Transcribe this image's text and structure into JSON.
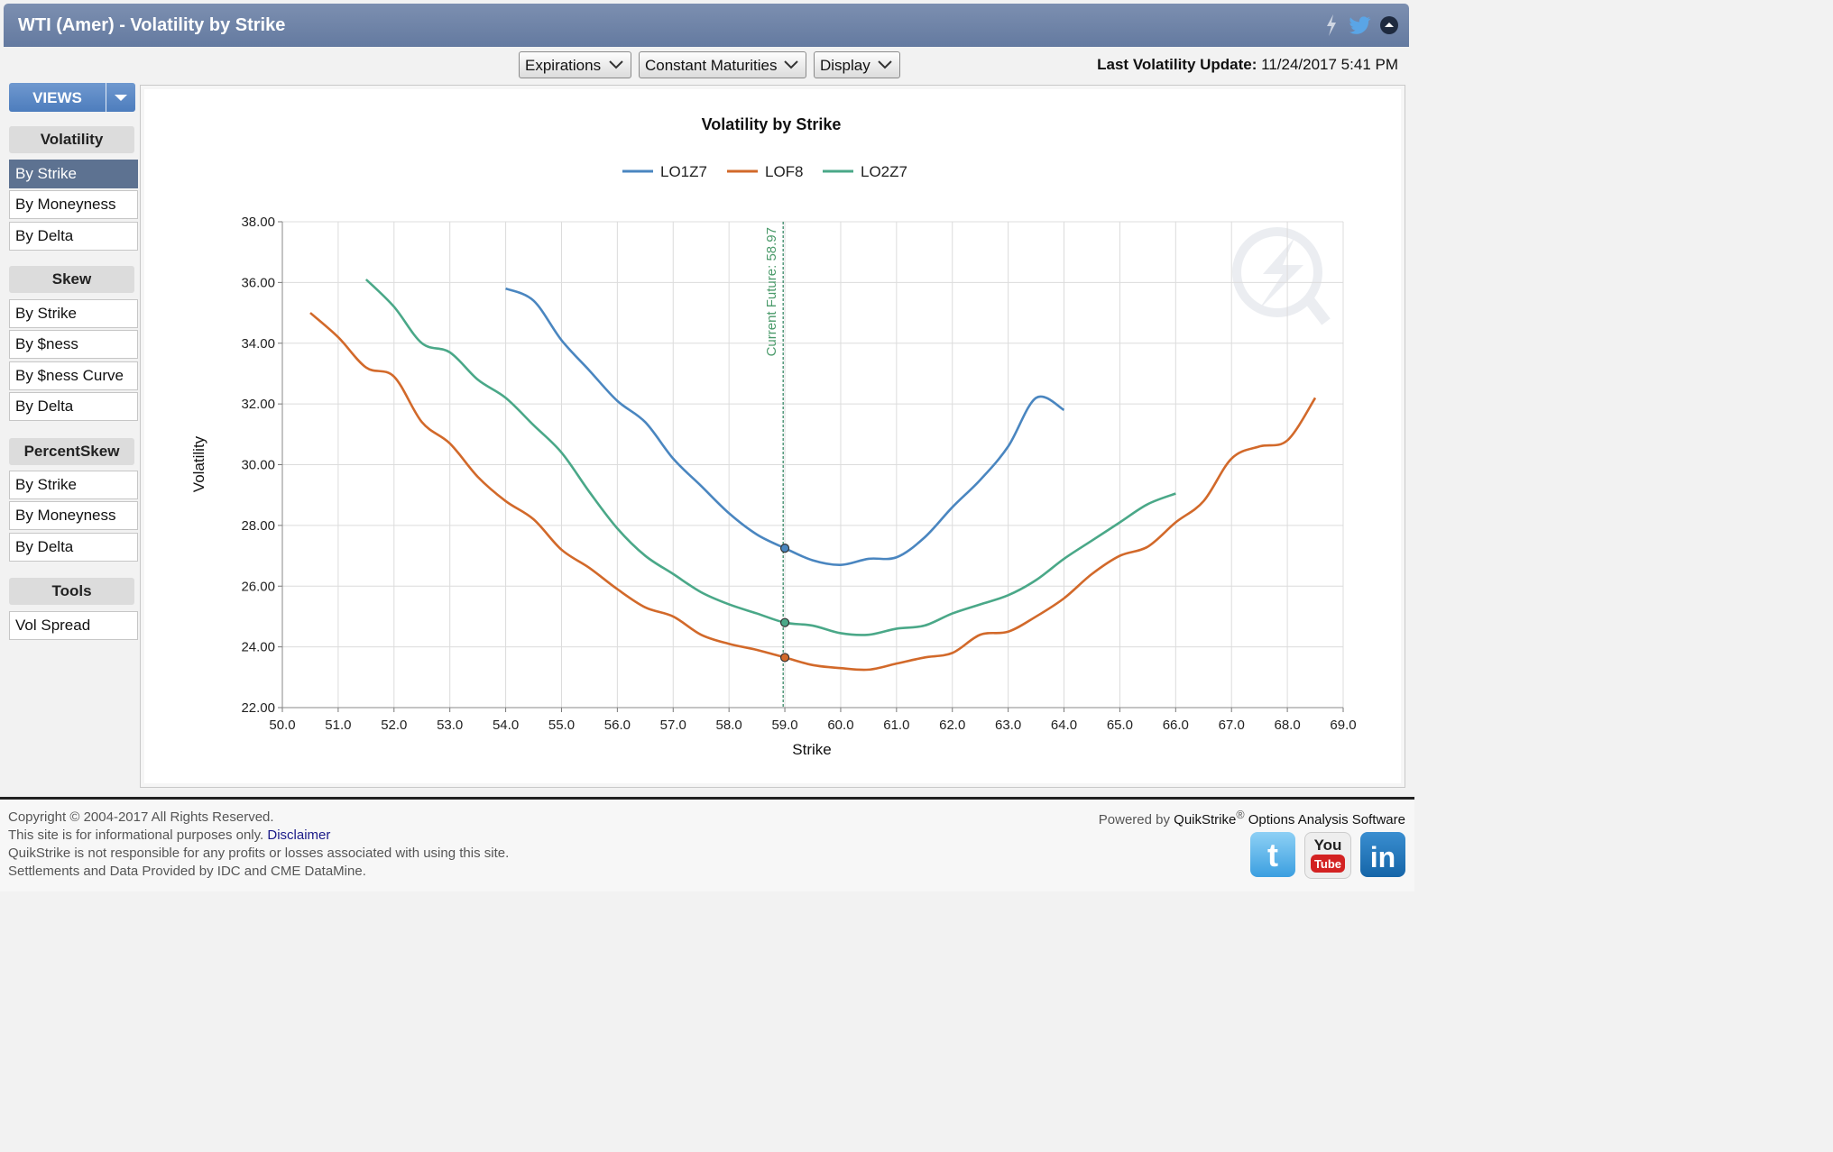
{
  "window": {
    "title": "WTI (Amer) - Volatility by Strike"
  },
  "toolbar": {
    "expirations": "Expirations",
    "constant_maturities": "Constant Maturities",
    "display": "Display",
    "last_update_label": "Last Volatility Update:",
    "last_update_value": "11/24/2017 5:41 PM"
  },
  "sidebar": {
    "views": "VIEWS",
    "sections": [
      {
        "title": "Volatility",
        "items": [
          "By Strike",
          "By Moneyness",
          "By Delta"
        ]
      },
      {
        "title": "Skew",
        "items": [
          "By Strike",
          "By $ness",
          "By $ness Curve",
          "By Delta"
        ]
      },
      {
        "title": "PercentSkew",
        "items": [
          "By Strike",
          "By Moneyness",
          "By Delta"
        ]
      },
      {
        "title": "Tools",
        "items": [
          "Vol Spread"
        ]
      }
    ],
    "active": "Volatility / By Strike"
  },
  "chart_data": {
    "type": "line",
    "title": "Volatility by Strike",
    "xlabel": "Strike",
    "ylabel": "Volatility",
    "xlim": [
      50,
      69
    ],
    "ylim": [
      22,
      38
    ],
    "xticks": [
      "50.0",
      "51.0",
      "52.0",
      "53.0",
      "54.0",
      "55.0",
      "56.0",
      "57.0",
      "58.0",
      "59.0",
      "60.0",
      "61.0",
      "62.0",
      "63.0",
      "64.0",
      "65.0",
      "66.0",
      "67.0",
      "68.0",
      "69.0"
    ],
    "yticks": [
      "22.00",
      "24.00",
      "26.00",
      "28.00",
      "30.00",
      "32.00",
      "34.00",
      "36.00",
      "38.00"
    ],
    "grid": true,
    "legend_position": "top-center",
    "current_future_label": "Current Future: 58.97",
    "current_future_value": 58.97,
    "series": [
      {
        "name": "LO1Z7",
        "color": "#4a86c0",
        "x": [
          54.0,
          54.5,
          55.0,
          55.5,
          56.0,
          56.5,
          57.0,
          57.5,
          58.0,
          58.5,
          59.0,
          59.5,
          60.0,
          60.5,
          61.0,
          61.5,
          62.0,
          62.5,
          63.0,
          63.5,
          64.0
        ],
        "y": [
          35.8,
          35.4,
          34.1,
          33.1,
          32.1,
          31.4,
          30.2,
          29.3,
          28.4,
          27.7,
          27.25,
          26.85,
          26.7,
          26.9,
          26.95,
          27.6,
          28.6,
          29.5,
          30.6,
          32.2,
          31.8
        ]
      },
      {
        "name": "LOF8",
        "color": "#d2692a",
        "x": [
          50.5,
          51.0,
          51.5,
          52.0,
          52.5,
          53.0,
          53.5,
          54.0,
          54.5,
          55.0,
          55.5,
          56.0,
          56.5,
          57.0,
          57.5,
          58.0,
          58.5,
          59.0,
          59.5,
          60.0,
          60.5,
          61.0,
          61.5,
          62.0,
          62.5,
          63.0,
          63.5,
          64.0,
          64.5,
          65.0,
          65.5,
          66.0,
          66.5,
          67.0,
          67.5,
          68.0,
          68.5
        ],
        "y": [
          35.0,
          34.2,
          33.2,
          32.9,
          31.4,
          30.7,
          29.6,
          28.8,
          28.2,
          27.2,
          26.6,
          25.9,
          25.3,
          25.0,
          24.4,
          24.1,
          23.9,
          23.65,
          23.4,
          23.3,
          23.25,
          23.45,
          23.65,
          23.8,
          24.4,
          24.5,
          25.0,
          25.6,
          26.4,
          27.0,
          27.3,
          28.1,
          28.8,
          30.2,
          30.6,
          30.8,
          32.2
        ]
      },
      {
        "name": "LO2Z7",
        "color": "#4aa888",
        "x": [
          51.5,
          52.0,
          52.5,
          53.0,
          53.5,
          54.0,
          54.5,
          55.0,
          55.5,
          56.0,
          56.5,
          57.0,
          57.5,
          58.0,
          58.5,
          59.0,
          59.5,
          60.0,
          60.5,
          61.0,
          61.5,
          62.0,
          62.5,
          63.0,
          63.5,
          64.0,
          64.5,
          65.0,
          65.5,
          66.0
        ],
        "y": [
          36.1,
          35.2,
          34.0,
          33.7,
          32.8,
          32.2,
          31.3,
          30.4,
          29.1,
          27.9,
          27.0,
          26.4,
          25.8,
          25.4,
          25.1,
          24.8,
          24.7,
          24.45,
          24.4,
          24.6,
          24.7,
          25.1,
          25.4,
          25.7,
          26.2,
          26.9,
          27.5,
          28.1,
          28.7,
          29.05
        ]
      }
    ]
  },
  "footer": {
    "copyright": "Copyright © 2004-2017 All Rights Reserved.",
    "info_prefix": "This site is for informational purposes only.",
    "disclaimer": "Disclaimer",
    "responsibility": "QuikStrike is not responsible for any profits or losses associated with using this site.",
    "settlements": "Settlements and Data Provided by IDC and CME DataMine.",
    "powered_by": "Powered by",
    "brand": "QuikStrike",
    "brand_tail": "Options Analysis Software",
    "youtube_text": "You"
  },
  "icons": [
    "lightning-icon",
    "twitter-icon",
    "collapse-icon",
    "twitter-icon",
    "youtube-icon",
    "linkedin-icon",
    "chevron-down-icon"
  ]
}
